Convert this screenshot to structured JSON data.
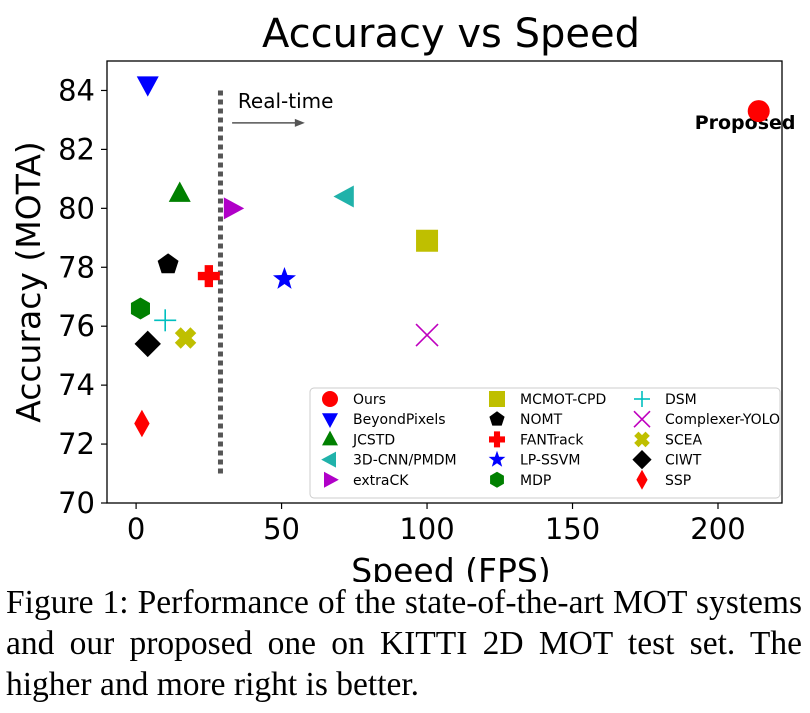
{
  "chart_data": {
    "type": "scatter",
    "title": "Accuracy vs Speed",
    "xlabel": "Speed (FPS)",
    "ylabel": "Accuracy (MOTA)",
    "xlim": [
      -10,
      222
    ],
    "ylim": [
      70,
      85
    ],
    "xticks": [
      "0",
      "50",
      "100",
      "150",
      "200"
    ],
    "xtick_values": [
      0,
      50,
      100,
      150,
      200
    ],
    "yticks": [
      "70",
      "72",
      "74",
      "76",
      "78",
      "80",
      "82",
      "84"
    ],
    "ytick_values": [
      70,
      72,
      74,
      76,
      78,
      80,
      82,
      84
    ],
    "grid": false,
    "legend_position": "bottom-right",
    "legend_columns": 3,
    "points": [
      {
        "name": "Ours",
        "x": 214,
        "y": 83.3,
        "marker": "circle",
        "color": "#ff0000"
      },
      {
        "name": "BeyondPixels",
        "x": 4,
        "y": 84.2,
        "marker": "triangle-down",
        "color": "#0000ff"
      },
      {
        "name": "JCSTD",
        "x": 15,
        "y": 80.5,
        "marker": "triangle-up",
        "color": "#008000"
      },
      {
        "name": "3D-CNN/PMDM",
        "x": 72,
        "y": 80.4,
        "marker": "triangle-left",
        "color": "#20b2aa"
      },
      {
        "name": "extraCK",
        "x": 33,
        "y": 80.0,
        "marker": "triangle-right",
        "color": "#b000c8"
      },
      {
        "name": "MCMOT-CPD",
        "x": 100,
        "y": 78.9,
        "marker": "square",
        "color": "#bfbf00"
      },
      {
        "name": "NOMT",
        "x": 11,
        "y": 78.1,
        "marker": "pentagon",
        "color": "#000000"
      },
      {
        "name": "FANTrack",
        "x": 25,
        "y": 77.7,
        "marker": "plus-filled",
        "color": "#ff0000"
      },
      {
        "name": "LP-SSVM",
        "x": 51,
        "y": 77.6,
        "marker": "star",
        "color": "#0000ff"
      },
      {
        "name": "MDP",
        "x": 1.5,
        "y": 76.6,
        "marker": "hexagon",
        "color": "#008000"
      },
      {
        "name": "DSM",
        "x": 10,
        "y": 76.2,
        "marker": "plus",
        "color": "#00bfbf"
      },
      {
        "name": "Complexer-YOLO",
        "x": 100,
        "y": 75.7,
        "marker": "x",
        "color": "#bf00bf"
      },
      {
        "name": "SCEA",
        "x": 17,
        "y": 75.6,
        "marker": "x-filled",
        "color": "#bfbf00"
      },
      {
        "name": "CIWT",
        "x": 4,
        "y": 75.4,
        "marker": "diamond",
        "color": "#000000"
      },
      {
        "name": "SSP",
        "x": 2,
        "y": 72.7,
        "marker": "thin-diamond",
        "color": "#ff0000"
      }
    ],
    "reference_line": {
      "x": 29,
      "y_from": 71,
      "y_to": 84.1,
      "style": "dotted",
      "color": "#555555"
    },
    "annotations": [
      {
        "name": "realtime-label",
        "text": "Real-time",
        "x": 35,
        "y": 83.4
      },
      {
        "name": "proposed-label",
        "text": "Proposed",
        "x": 192,
        "y": 82.7,
        "bold": true
      }
    ],
    "arrow": {
      "x_from": 33,
      "x_to": 58,
      "y": 82.9,
      "color": "#555555"
    }
  },
  "caption": "Figure 1: Performance of the state-of-the-art MOT systems and our proposed one on KITTI 2D MOT test set. The higher and more right is better."
}
